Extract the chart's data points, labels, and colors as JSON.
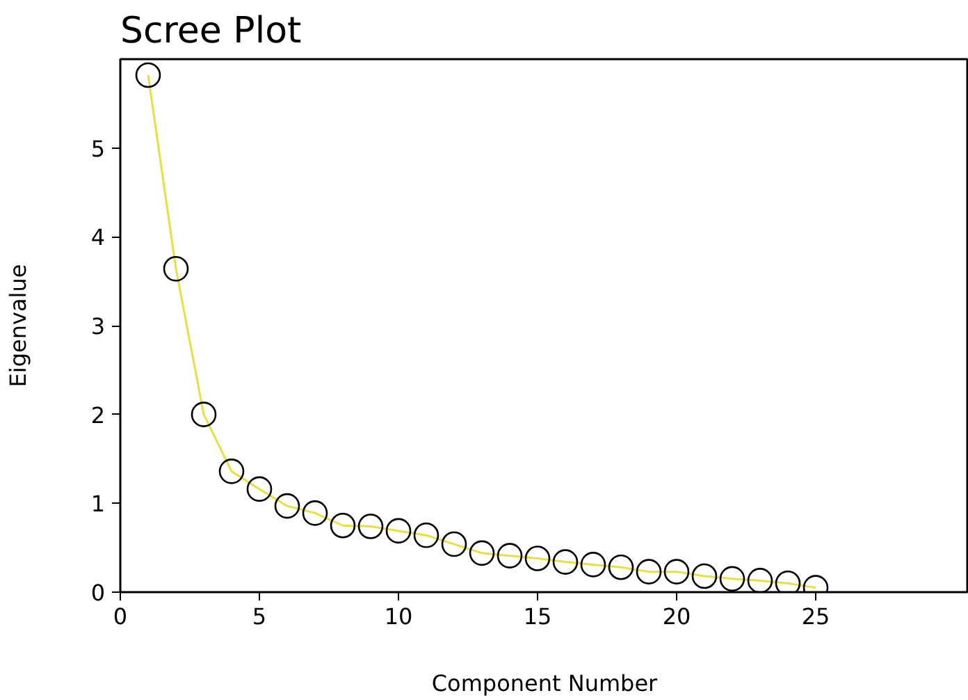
{
  "chart_data": {
    "type": "line",
    "title": "Scree Plot",
    "xlabel": "Component Number",
    "ylabel": "Eigenvalue",
    "x": [
      1,
      2,
      3,
      4,
      5,
      6,
      7,
      8,
      9,
      10,
      11,
      12,
      13,
      14,
      15,
      16,
      17,
      18,
      19,
      20,
      21,
      22,
      23,
      24,
      25
    ],
    "series": [
      {
        "color": "#e8e040",
        "values": [
          5.82,
          3.64,
          2.0,
          1.36,
          1.16,
          0.97,
          0.89,
          0.75,
          0.74,
          0.69,
          0.64,
          0.54,
          0.44,
          0.41,
          0.38,
          0.34,
          0.31,
          0.28,
          0.23,
          0.23,
          0.18,
          0.15,
          0.13,
          0.1,
          0.05
        ]
      }
    ],
    "marker": "circle",
    "line_style": "solid",
    "grid": false,
    "xlim": [
      0,
      30.5
    ],
    "ylim": [
      0,
      6
    ],
    "xticks": [
      0,
      5,
      10,
      15,
      20,
      25
    ],
    "yticks": [
      0,
      1,
      2,
      3,
      4,
      5
    ]
  }
}
